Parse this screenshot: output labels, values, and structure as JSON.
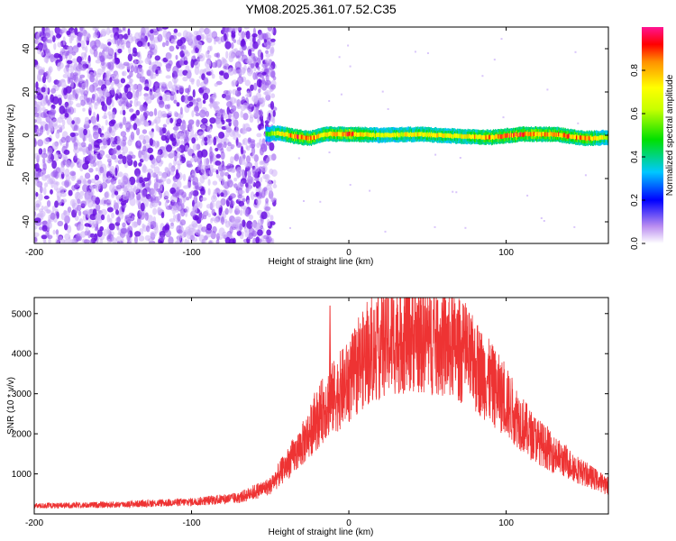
{
  "title": "YM08.2025.361.07.52.C35",
  "chart_data": [
    {
      "type": "heatmap",
      "xlabel": "Height of straight line (km)",
      "ylabel": "Frequency (Hz)",
      "xlim": [
        -200,
        165
      ],
      "ylim": [
        -50,
        50
      ],
      "xticks": [
        -200,
        -100,
        0,
        100
      ],
      "yticks": [
        -40,
        -20,
        0,
        20,
        40
      ],
      "noise_region": {
        "x_start": -200,
        "x_end": -55,
        "freq_range": [
          -50,
          50
        ],
        "amplitude": [
          0.05,
          0.25
        ]
      },
      "ridge": [
        {
          "x": -53,
          "freq": 0.5,
          "amp": 0.55
        },
        {
          "x": -45,
          "freq": 1.0,
          "amp": 0.75
        },
        {
          "x": -35,
          "freq": -0.5,
          "amp": 0.95
        },
        {
          "x": -25,
          "freq": -1.5,
          "amp": 0.9
        },
        {
          "x": -15,
          "freq": 0.5,
          "amp": 0.85
        },
        {
          "x": 0,
          "freq": 0.5,
          "amp": 0.95
        },
        {
          "x": 20,
          "freq": 0.0,
          "amp": 0.7
        },
        {
          "x": 45,
          "freq": 0.5,
          "amp": 0.8
        },
        {
          "x": 70,
          "freq": -0.5,
          "amp": 0.75
        },
        {
          "x": 90,
          "freq": -1.0,
          "amp": 0.9
        },
        {
          "x": 110,
          "freq": 0.5,
          "amp": 0.95
        },
        {
          "x": 130,
          "freq": 0.5,
          "amp": 0.9
        },
        {
          "x": 150,
          "freq": -1.5,
          "amp": 0.9
        },
        {
          "x": 165,
          "freq": -1.0,
          "amp": 0.7
        }
      ],
      "colorbar": {
        "label": "Normalized spectral amplitude",
        "range": [
          0,
          1
        ],
        "ticks": [
          "0.0",
          "0.2",
          "0.4",
          "0.6",
          "0.8"
        ],
        "palette": "rainbow"
      },
      "colors": {
        "low": "#ffffff",
        "violet": "#8a2be2",
        "blue": "#0000ff",
        "green": "#00c800",
        "red": "#ff0000"
      }
    },
    {
      "type": "line",
      "xlabel": "Height of straight line (km)",
      "ylabel": "SNR (10 * v/v)",
      "xlim": [
        -200,
        165
      ],
      "ylim": [
        0,
        5400
      ],
      "xticks": [
        -200,
        -100,
        0,
        100
      ],
      "yticks": [
        1000,
        2000,
        3000,
        4000,
        5000
      ],
      "color": "#ee3333",
      "envelope": [
        {
          "x": -200,
          "y": 200
        },
        {
          "x": -150,
          "y": 230
        },
        {
          "x": -100,
          "y": 300
        },
        {
          "x": -70,
          "y": 400
        },
        {
          "x": -50,
          "y": 700
        },
        {
          "x": -30,
          "y": 1700
        },
        {
          "x": -15,
          "y": 2700
        },
        {
          "x": 0,
          "y": 3300
        },
        {
          "x": 10,
          "y": 3900
        },
        {
          "x": 25,
          "y": 4300
        },
        {
          "x": 40,
          "y": 4450
        },
        {
          "x": 55,
          "y": 4300
        },
        {
          "x": 70,
          "y": 4100
        },
        {
          "x": 85,
          "y": 3500
        },
        {
          "x": 100,
          "y": 2800
        },
        {
          "x": 115,
          "y": 2000
        },
        {
          "x": 130,
          "y": 1500
        },
        {
          "x": 150,
          "y": 1000
        },
        {
          "x": 165,
          "y": 700
        }
      ],
      "spikes": [
        {
          "x": -12,
          "y": 5200
        },
        {
          "x": 21,
          "y": 5400
        }
      ]
    }
  ]
}
